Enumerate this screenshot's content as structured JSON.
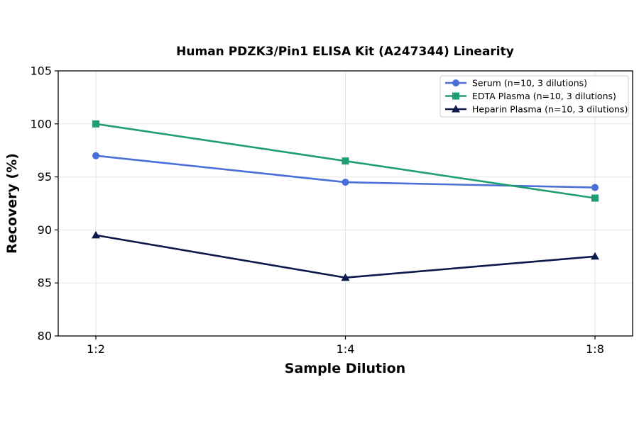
{
  "chart_data": {
    "type": "line",
    "title": "Human PDZK3/Pin1 ELISA Kit (A247344) Linearity",
    "xlabel": "Sample Dilution",
    "ylabel": "Recovery (%)",
    "categories": [
      "1:2",
      "1:4",
      "1:8"
    ],
    "ylim": [
      80,
      105
    ],
    "yticks": [
      80,
      85,
      90,
      95,
      100,
      105
    ],
    "grid": true,
    "legend_position": "top-right",
    "series": [
      {
        "name": "Serum (n=10, 3 dilutions)",
        "values": [
          97,
          94.5,
          94
        ],
        "color": "#4a6fd8",
        "marker": "circle"
      },
      {
        "name": "EDTA Plasma (n=10, 3 dilutions)",
        "values": [
          100,
          96.5,
          93
        ],
        "color": "#1f9e72",
        "marker": "square"
      },
      {
        "name": "Heparin Plasma (n=10, 3 dilutions)",
        "values": [
          89.5,
          85.5,
          87.5
        ],
        "color": "#0b1a4a",
        "marker": "triangle"
      }
    ]
  }
}
